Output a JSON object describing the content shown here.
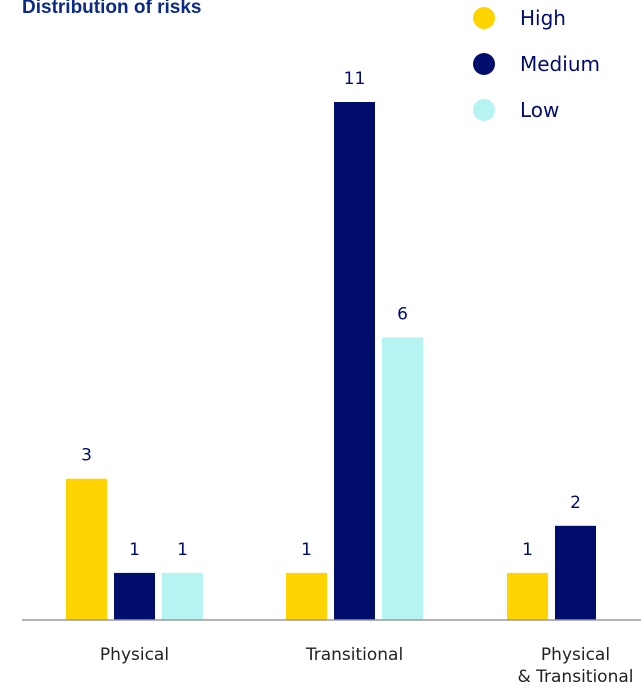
{
  "chart_data": {
    "type": "bar",
    "title": "Distribution of risks",
    "categories": [
      "Physical",
      "Transitional",
      "Physical\n& Transitional"
    ],
    "series": [
      {
        "name": "High",
        "color": "#ffd400",
        "values": [
          3,
          1,
          1
        ]
      },
      {
        "name": "Medium",
        "color": "#000d6b",
        "values": [
          1,
          11,
          2
        ]
      },
      {
        "name": "Low",
        "color": "#b6f4f4",
        "values": [
          1,
          6,
          null
        ]
      }
    ],
    "ylim": [
      0,
      11
    ],
    "grid": false,
    "legend": "top-right",
    "xlabel": "",
    "ylabel": ""
  }
}
